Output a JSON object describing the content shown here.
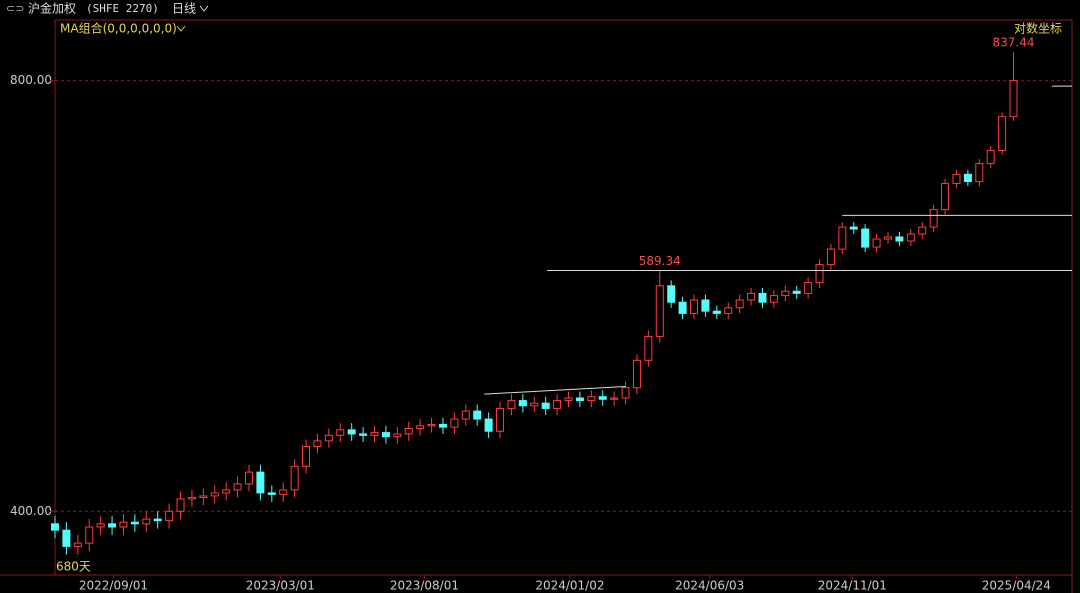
{
  "header": {
    "symbol": "沪金加权",
    "code": "(SHFE 2270)",
    "period": "日线",
    "indicator": "MA组合(0,0,0,0,0,0)",
    "scale_mode": "对数坐标"
  },
  "chart_data": {
    "type": "candlestick",
    "log_scale": true,
    "grid": true,
    "bar_count_label": "680天",
    "up_color": "#ff3c3c",
    "down_color": "#54fcfc",
    "xlim": [
      0,
      713
    ],
    "ylim": [
      361,
      882
    ],
    "yticks": [
      {
        "value": 400,
        "label": "400.00"
      },
      {
        "value": 800,
        "label": "800.00"
      }
    ],
    "xticks": [
      {
        "value": 41,
        "label": "2022/09/01"
      },
      {
        "value": 158,
        "label": "2023/03/01"
      },
      {
        "value": 259,
        "label": "2023/08/01"
      },
      {
        "value": 361,
        "label": "2024/01/02"
      },
      {
        "value": 459,
        "label": "2024/06/03"
      },
      {
        "value": 559,
        "label": "2024/11/01"
      },
      {
        "value": 674,
        "label": "2025/04/24"
      }
    ],
    "x": [
      0,
      8,
      16,
      24,
      32,
      40,
      48,
      56,
      64,
      72,
      80,
      88,
      96,
      104,
      112,
      120,
      128,
      136,
      144,
      152,
      160,
      168,
      176,
      184,
      192,
      200,
      208,
      216,
      224,
      232,
      240,
      248,
      256,
      264,
      272,
      280,
      288,
      296,
      304,
      312,
      320,
      328,
      336,
      344,
      352,
      360,
      368,
      376,
      384,
      392,
      400,
      408,
      416,
      424,
      432,
      440,
      448,
      456,
      464,
      472,
      480,
      488,
      496,
      504,
      512,
      520,
      528,
      536,
      544,
      552,
      560,
      568,
      576,
      584,
      592,
      600,
      608,
      616,
      624,
      632,
      640,
      648,
      656,
      664,
      672
    ],
    "open": [
      392,
      388,
      378,
      380,
      390,
      392,
      390,
      393,
      392,
      395,
      394,
      400,
      408,
      409,
      410,
      412,
      414,
      418,
      426,
      412,
      411,
      414,
      430,
      444,
      448,
      452,
      456,
      453,
      452,
      454,
      451,
      453,
      457,
      459,
      460,
      458,
      464,
      470,
      464,
      455,
      472,
      478,
      474,
      476,
      472,
      478,
      480,
      478,
      481,
      479,
      480,
      488,
      510,
      530,
      575,
      560,
      550,
      562,
      552,
      550,
      555,
      562,
      568,
      560,
      566,
      570,
      568,
      578,
      595,
      610,
      632,
      630,
      612,
      620,
      622,
      618,
      625,
      632,
      650,
      678,
      688,
      680,
      700,
      715,
      755
    ],
    "high": [
      397,
      393,
      385,
      395,
      397,
      397,
      398,
      398,
      400,
      400,
      405,
      413,
      414,
      415,
      417,
      419,
      423,
      431,
      431,
      417,
      419,
      435,
      449,
      453,
      457,
      461,
      461,
      458,
      459,
      459,
      458,
      462,
      464,
      465,
      465,
      469,
      475,
      475,
      469,
      477,
      483,
      483,
      481,
      481,
      483,
      485,
      485,
      486,
      486,
      485,
      493,
      515,
      535,
      589.34,
      580,
      565,
      567,
      567,
      557,
      560,
      567,
      573,
      573,
      571,
      575,
      575,
      583,
      600,
      615,
      637,
      637,
      635,
      625,
      627,
      627,
      630,
      637,
      655,
      683,
      693,
      693,
      705,
      720,
      760,
      837.44
    ],
    "low": [
      383,
      373,
      373,
      375,
      385,
      385,
      385,
      387,
      387,
      389,
      389,
      395,
      403,
      404,
      405,
      407,
      409,
      413,
      407,
      406,
      406,
      409,
      425,
      439,
      443,
      447,
      448,
      447,
      447,
      446,
      446,
      448,
      452,
      454,
      453,
      453,
      459,
      459,
      450,
      450,
      467,
      469,
      469,
      467,
      467,
      473,
      473,
      473,
      474,
      474,
      475,
      483,
      505,
      525,
      555,
      545,
      545,
      547,
      545,
      545,
      550,
      557,
      555,
      555,
      561,
      563,
      563,
      573,
      590,
      605,
      625,
      607,
      607,
      615,
      613,
      613,
      620,
      627,
      645,
      673,
      675,
      675,
      695,
      710,
      750
    ],
    "close": [
      388,
      378,
      380,
      390,
      392,
      390,
      393,
      392,
      395,
      394,
      400,
      408,
      409,
      410,
      412,
      414,
      418,
      426,
      412,
      411,
      414,
      430,
      444,
      448,
      452,
      456,
      453,
      452,
      454,
      451,
      453,
      457,
      459,
      460,
      458,
      464,
      470,
      464,
      455,
      472,
      478,
      474,
      476,
      472,
      478,
      480,
      478,
      481,
      479,
      480,
      488,
      510,
      530,
      575,
      560,
      550,
      562,
      552,
      550,
      555,
      562,
      568,
      560,
      566,
      570,
      568,
      578,
      595,
      610,
      632,
      630,
      612,
      620,
      622,
      618,
      625,
      632,
      650,
      678,
      688,
      680,
      700,
      715,
      755,
      800
    ],
    "price_labels": [
      53,
      84
    ],
    "drawn_lines": [
      {
        "x": [
          345,
          713
        ],
        "y": [
          589.34,
          589.34
        ]
      },
      {
        "x": [
          552,
          713
        ],
        "y": [
          644,
          644
        ]
      },
      {
        "x": [
          301,
          400
        ],
        "y": [
          483,
          489
        ]
      },
      {
        "x": [
          699,
          713
        ],
        "y": [
          793,
          793
        ]
      }
    ]
  }
}
